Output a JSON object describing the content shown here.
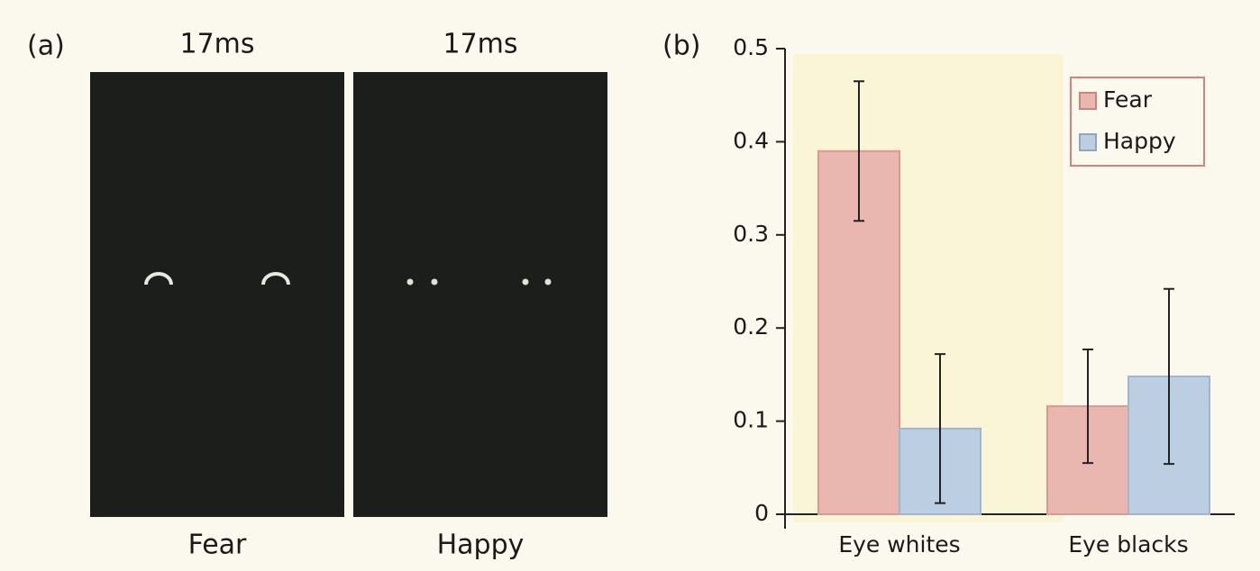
{
  "chart_data": [
    {
      "type": "image-panels",
      "label": "(a)",
      "panels": [
        {
          "title": "17ms",
          "caption": "Fear"
        },
        {
          "title": "17ms",
          "caption": "Happy"
        }
      ]
    },
    {
      "type": "bar",
      "label": "(b)",
      "categories": [
        "Eye whites",
        "Eye blacks"
      ],
      "series": [
        {
          "name": "Fear",
          "color": "#e9b6b0",
          "values": [
            0.39,
            0.116
          ],
          "errors": [
            0.075,
            0.061
          ]
        },
        {
          "name": "Happy",
          "color": "#bccfe2",
          "values": [
            0.092,
            0.148
          ],
          "errors": [
            0.08,
            0.094
          ]
        }
      ],
      "ylim": [
        0,
        0.5
      ],
      "yticks": [
        0,
        0.1,
        0.2,
        0.3,
        0.4,
        0.5
      ],
      "legend": "upper right"
    }
  ]
}
